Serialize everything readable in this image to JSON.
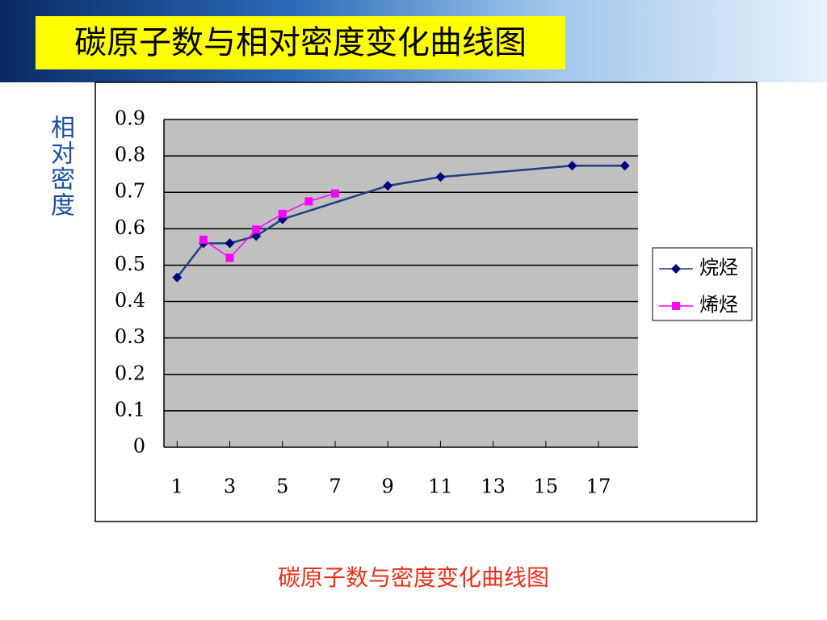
{
  "header": {
    "title": "碳原子数与相对密度变化曲线图"
  },
  "chart_data": {
    "type": "line",
    "title": "碳原子数与密度变化曲线图",
    "y_label": "相对密度",
    "xlim": [
      0.5,
      18.5
    ],
    "xticks": [
      1,
      3,
      5,
      7,
      9,
      11,
      13,
      15,
      17
    ],
    "ylim": [
      0,
      0.9
    ],
    "yticks": [
      0,
      0.1,
      0.2,
      0.3,
      0.4,
      0.5,
      0.6,
      0.7,
      0.8,
      0.9
    ],
    "grid": true,
    "legend": "right",
    "series": [
      {
        "name": "烷烃",
        "color": "#1f3f7f",
        "marker": "diamond",
        "marker_color": "#000080",
        "x": [
          1,
          2,
          3,
          4,
          5,
          9,
          11,
          16,
          18
        ],
        "values": [
          0.466,
          0.56,
          0.56,
          0.58,
          0.626,
          0.718,
          0.742,
          0.773,
          0.773
        ]
      },
      {
        "name": "烯烃",
        "color": "#ff00ff",
        "marker": "square",
        "marker_color": "#ff00ff",
        "x": [
          2,
          3,
          4,
          5,
          6,
          7
        ],
        "values": [
          0.57,
          0.52,
          0.598,
          0.641,
          0.675,
          0.697
        ]
      }
    ]
  }
}
